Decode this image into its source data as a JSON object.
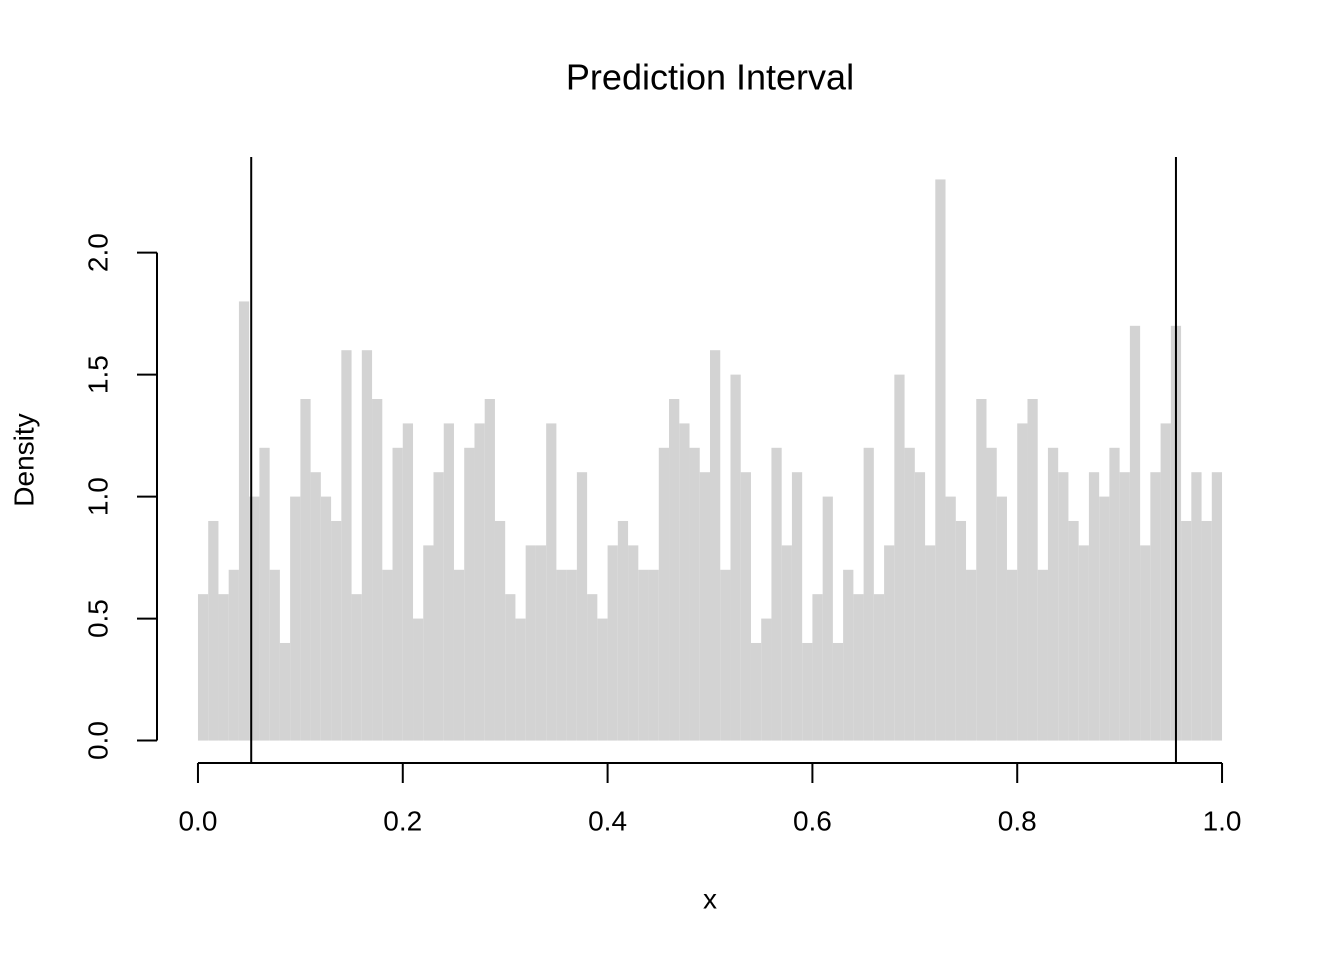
{
  "chart_data": {
    "type": "histogram",
    "title": "Prediction Interval",
    "x_label": "x",
    "y_label": "Density",
    "bins": [
      0,
      0.01,
      0.02,
      0.03,
      0.04,
      0.05,
      0.06,
      0.07,
      0.08,
      0.09,
      0.1,
      0.11,
      0.12,
      0.13,
      0.14,
      0.15,
      0.16,
      0.17,
      0.18,
      0.19,
      0.2,
      0.21,
      0.22,
      0.23,
      0.24,
      0.25,
      0.26,
      0.27,
      0.28,
      0.29,
      0.3,
      0.31,
      0.32,
      0.33,
      0.34,
      0.35,
      0.36,
      0.37,
      0.38,
      0.39,
      0.4,
      0.41,
      0.42,
      0.43,
      0.44,
      0.45,
      0.46,
      0.47,
      0.48,
      0.49,
      0.5,
      0.51,
      0.52,
      0.53,
      0.54,
      0.55,
      0.56,
      0.57,
      0.58,
      0.59,
      0.6,
      0.61,
      0.62,
      0.63,
      0.64,
      0.65,
      0.66,
      0.67,
      0.68,
      0.69,
      0.7,
      0.71,
      0.72,
      0.73,
      0.74,
      0.75,
      0.76,
      0.77,
      0.78,
      0.79,
      0.8,
      0.81,
      0.82,
      0.83,
      0.84,
      0.85,
      0.86,
      0.87,
      0.88,
      0.89,
      0.9,
      0.91,
      0.92,
      0.93,
      0.94,
      0.95,
      0.96,
      0.97,
      0.98,
      0.99,
      1
    ],
    "values": [
      0.6,
      0.9,
      0.6,
      0.7,
      1.8,
      1.0,
      1.2,
      0.7,
      0.4,
      1.0,
      1.4,
      1.1,
      1.0,
      0.9,
      1.6,
      0.6,
      1.6,
      1.4,
      0.7,
      1.2,
      1.3,
      0.5,
      0.8,
      1.1,
      1.3,
      0.7,
      1.2,
      1.3,
      1.4,
      0.9,
      0.6,
      0.5,
      0.8,
      0.8,
      1.3,
      0.7,
      0.7,
      1.1,
      0.6,
      0.5,
      0.8,
      0.9,
      0.8,
      0.7,
      0.7,
      1.2,
      1.4,
      1.3,
      1.2,
      1.1,
      1.6,
      0.7,
      1.5,
      1.1,
      0.4,
      0.5,
      1.2,
      0.8,
      1.1,
      0.4,
      0.6,
      1.0,
      0.4,
      0.7,
      0.6,
      1.2,
      0.6,
      0.8,
      1.5,
      1.2,
      1.1,
      0.8,
      2.3,
      1.0,
      0.9,
      0.7,
      1.4,
      1.2,
      1.0,
      0.7,
      1.3,
      1.4,
      0.7,
      1.2,
      1.1,
      0.9,
      0.8,
      1.1,
      1.0,
      1.2,
      1.1,
      1.7,
      0.8,
      1.1,
      1.3,
      1.7,
      0.9,
      1.1,
      0.9,
      1.1
    ],
    "color": "#d3d3d3",
    "vlines": [
      0.052,
      0.955
    ],
    "vline_color": "#000000",
    "xlim": [
      -0.04,
      1.04
    ],
    "xticks": [
      {
        "value": 0,
        "label": "0.0"
      },
      0.2,
      0.4,
      0.6,
      0.8,
      {
        "value": 1,
        "label": "1.0"
      }
    ],
    "ylim": [
      -0.092,
      2.392
    ],
    "yticks": [
      {
        "value": 0,
        "label": "0.0"
      },
      0.5,
      {
        "value": 1,
        "label": "1.0"
      },
      1.5,
      {
        "value": 2,
        "label": "2.0"
      }
    ]
  }
}
